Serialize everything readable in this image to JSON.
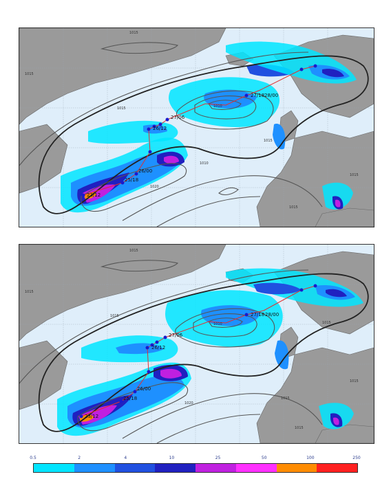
{
  "panels": [
    {
      "id": "top",
      "track_labels": [
        "23/12",
        "25/18",
        "26/00",
        "26/12",
        "27/06",
        "27/18",
        "28/00"
      ],
      "isobar_labels": [
        "1015",
        "1015",
        "1010",
        "1015",
        "1015",
        "1020",
        "1010",
        "1015",
        "1015"
      ]
    },
    {
      "id": "bottom",
      "track_labels": [
        "23/12",
        "25/18",
        "26/00",
        "26/12",
        "27/06",
        "27/18",
        "28/00"
      ],
      "isobar_labels": [
        "1015",
        "1015",
        "1015",
        "1010",
        "1015",
        "1015",
        "1020",
        "1015",
        "1015"
      ]
    }
  ],
  "legend": {
    "ticks": [
      "0.5",
      "2",
      "4",
      "10",
      "25",
      "50",
      "100",
      "250"
    ],
    "colors": [
      "#00e5ff",
      "#1e90ff",
      "#2050e0",
      "#2020c0",
      "#c020e0",
      "#ff30ff",
      "#ff8c00",
      "#ff2020"
    ]
  }
}
